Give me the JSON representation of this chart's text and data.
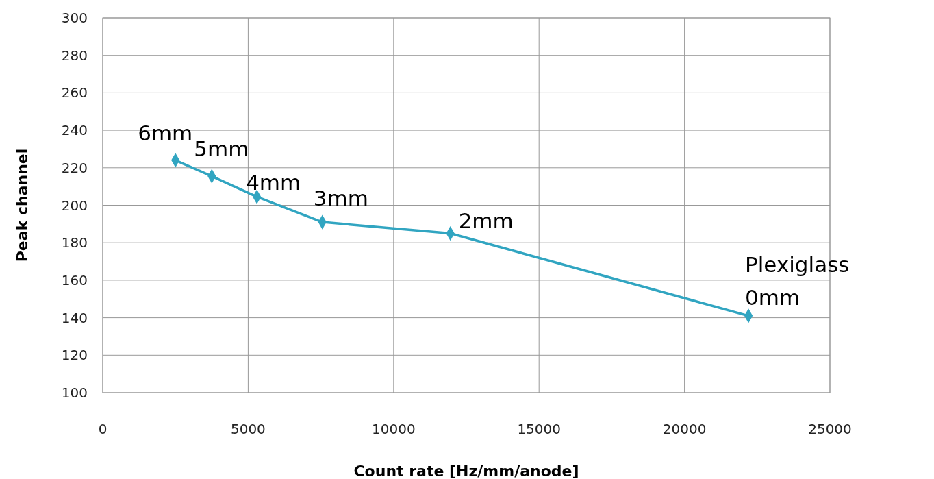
{
  "chart_data": {
    "type": "line",
    "xlabel": "Count rate [Hz/mm/anode]",
    "ylabel": "Peak channel",
    "x": [
      2500,
      3750,
      5300,
      7550,
      11950,
      22200
    ],
    "series": [
      {
        "color": "#31a5c1",
        "values": [
          224,
          215.5,
          204.5,
          191,
          185,
          141
        ]
      }
    ],
    "xlim": [
      0,
      25000
    ],
    "xticks": [
      0,
      5000,
      10000,
      15000,
      20000,
      25000
    ],
    "ylim": [
      100,
      300
    ],
    "yticks": [
      100,
      120,
      140,
      160,
      180,
      200,
      220,
      240,
      260,
      280,
      300
    ],
    "grid": true,
    "marker": "diamond",
    "line_style": "solid",
    "annotations": [
      {
        "text": "6mm",
        "x": 2500,
        "y": 224
      },
      {
        "text": "5mm",
        "x": 3750,
        "y": 215.5
      },
      {
        "text": "4mm",
        "x": 5300,
        "y": 204.5
      },
      {
        "text": "3mm",
        "x": 7550,
        "y": 191
      },
      {
        "text": "2mm",
        "x": 11950,
        "y": 185
      },
      {
        "text": "Plexiglass\n0mm",
        "x": 22200,
        "y": 141
      }
    ]
  }
}
